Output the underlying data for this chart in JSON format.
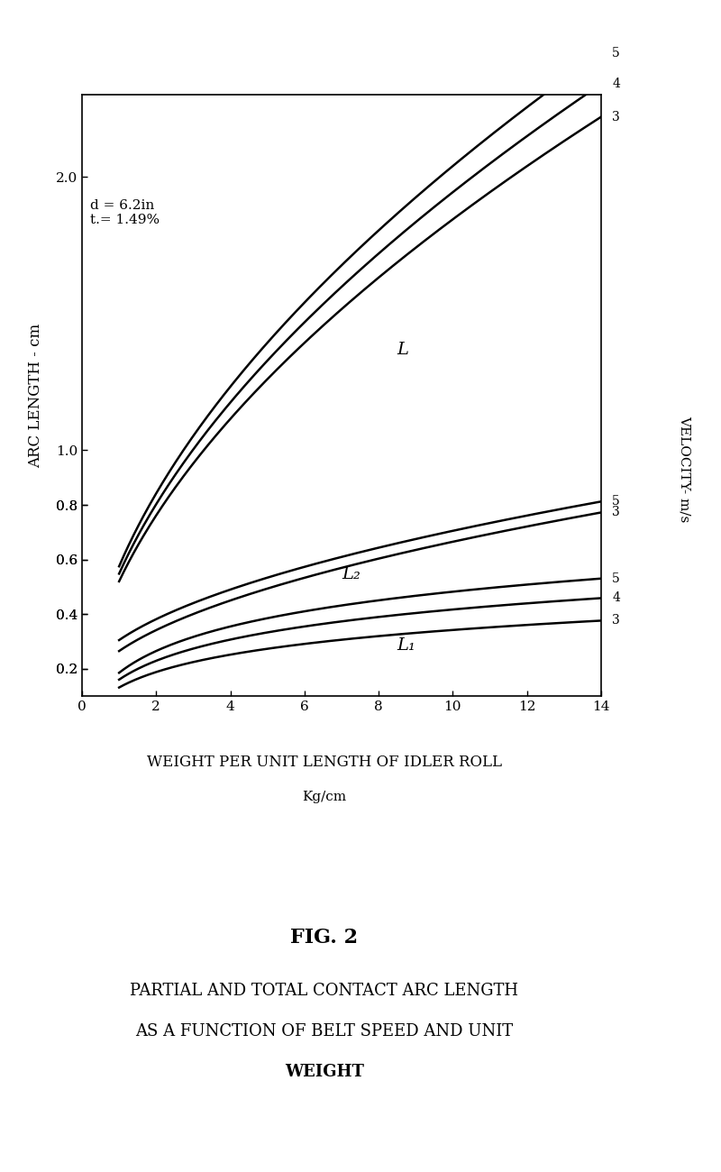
{
  "annotation": "d = 6.2in\nt.= 1.49%",
  "xlabel_line1": "WEIGHT PER UNIT LENGTH OF IDLER ROLL",
  "xlabel_line2": "Kg/cm",
  "ylabel": "ARC LENGTH - cm",
  "right_label": "VELOCITY- m/s",
  "fig_label": "FIG. 2",
  "title_line1": "PARTIAL AND TOTAL CONTACT ARC LENGTH",
  "title_line2": "AS A FUNCTION OF BELT SPEED AND UNIT",
  "title_line3": "WEIGHT",
  "background": "#ffffff",
  "line_color": "#000000",
  "xlim": [
    0,
    14
  ],
  "x_ticks": [
    0,
    2,
    4,
    6,
    8,
    10,
    12,
    14
  ],
  "L_label": "L",
  "L1_label": "L₁",
  "L2_label": "L₂",
  "velocity_groups": {
    "L": [
      "5",
      "4",
      "3"
    ],
    "L1": [
      "5",
      "4",
      "3"
    ],
    "L2": [
      "5",
      "3"
    ]
  }
}
